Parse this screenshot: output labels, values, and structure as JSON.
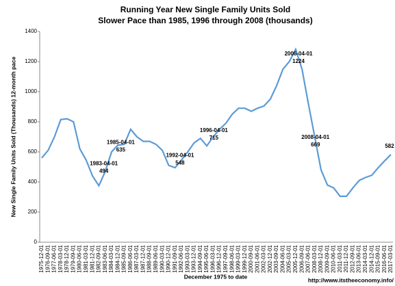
{
  "chart_data": {
    "type": "line",
    "title": "Running Year New Single Family Units Sold",
    "subtitle": "Slower Pace than 1985, 1996 through 2008 (thousands)",
    "y_label": "New Single Family Units Sold (Thousands) 12-month pace",
    "x_label": "December 1975 to date",
    "source": "http://www.itstheeconomy.info/",
    "categories": [
      "1975-12-01",
      "1976-09-01",
      "1977-06-01",
      "1978-03-01",
      "1978-12-01",
      "1979-09-01",
      "1980-06-01",
      "1981-03-01",
      "1981-12-01",
      "1982-09-01",
      "1983-06-01",
      "1984-03-01",
      "1984-12-01",
      "1985-09-01",
      "1986-06-01",
      "1987-03-01",
      "1987-12-01",
      "1988-09-01",
      "1989-06-01",
      "1990-03-01",
      "1990-12-01",
      "1991-09-01",
      "1992-06-01",
      "1993-03-01",
      "1993-12-01",
      "1994-09-01",
      "1995-06-01",
      "1996-03-01",
      "1996-12-01",
      "1997-09-01",
      "1998-06-01",
      "1999-03-01",
      "1999-12-01",
      "2000-09-01",
      "2001-06-01",
      "2002-03-01",
      "2002-12-01",
      "2003-09-01",
      "2004-06-01",
      "2005-03-01",
      "2005-12-01",
      "2006-09-01",
      "2007-06-01",
      "2008-03-01",
      "2008-12-01",
      "2009-09-01",
      "2010-06-01",
      "2011-03-01",
      "2011-12-01",
      "2012-09-01",
      "2013-06-01",
      "2014-03-01",
      "2014-12-01",
      "2015-09-01",
      "2016-06-01",
      "2017-03-01"
    ],
    "series": [
      {
        "color": "#5b9bd5",
        "values": [
          560,
          610,
          700,
          815,
          820,
          800,
          620,
          545,
          440,
          375,
          470,
          600,
          645,
          650,
          750,
          700,
          670,
          670,
          650,
          610,
          510,
          495,
          545,
          600,
          660,
          690,
          640,
          700,
          750,
          790,
          850,
          890,
          890,
          870,
          890,
          905,
          950,
          1040,
          1150,
          1200,
          1282,
          1150,
          920,
          700,
          480,
          380,
          360,
          305,
          305,
          360,
          410,
          430,
          445,
          495,
          540,
          582
        ]
      }
    ],
    "annotations": [
      {
        "date": "1983-04-01",
        "value": 494
      },
      {
        "date": "1985-04-01",
        "value": 635
      },
      {
        "date": "1992-04-01",
        "value": 548
      },
      {
        "date": "1996-04-01",
        "value": 715
      },
      {
        "date": "2006-04-01",
        "value": 1224
      },
      {
        "date": "2008-04-01",
        "value": 669
      },
      {
        "value": 582
      }
    ],
    "ylim": [
      0,
      1400
    ],
    "yticks": [
      0,
      200,
      400,
      600,
      800,
      1000,
      1200,
      1400
    ],
    "grid": false
  }
}
